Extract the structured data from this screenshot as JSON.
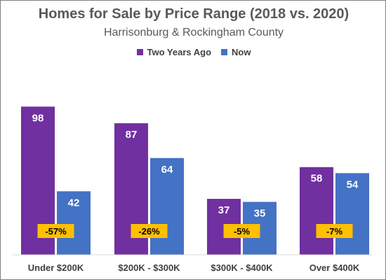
{
  "chart_data": {
    "type": "bar",
    "title": "Homes for Sale by Price Range (2018 vs. 2020)",
    "subtitle": "Harrisonburg & Rockingham County",
    "categories": [
      "Under $200K",
      "$200K - $300K",
      "$300K - $400K",
      "Over $400K"
    ],
    "series": [
      {
        "name": "Two Years Ago",
        "color": "#7030a0",
        "values": [
          98,
          87,
          37,
          58
        ]
      },
      {
        "name": "Now",
        "color": "#4472c4",
        "values": [
          42,
          64,
          35,
          54
        ]
      }
    ],
    "change_labels": [
      "-57%",
      "-26%",
      "-5%",
      "-7%"
    ],
    "change_label_color": "#ffc000",
    "ylim": [
      0,
      100
    ],
    "grid": false,
    "legend_position": "top"
  }
}
